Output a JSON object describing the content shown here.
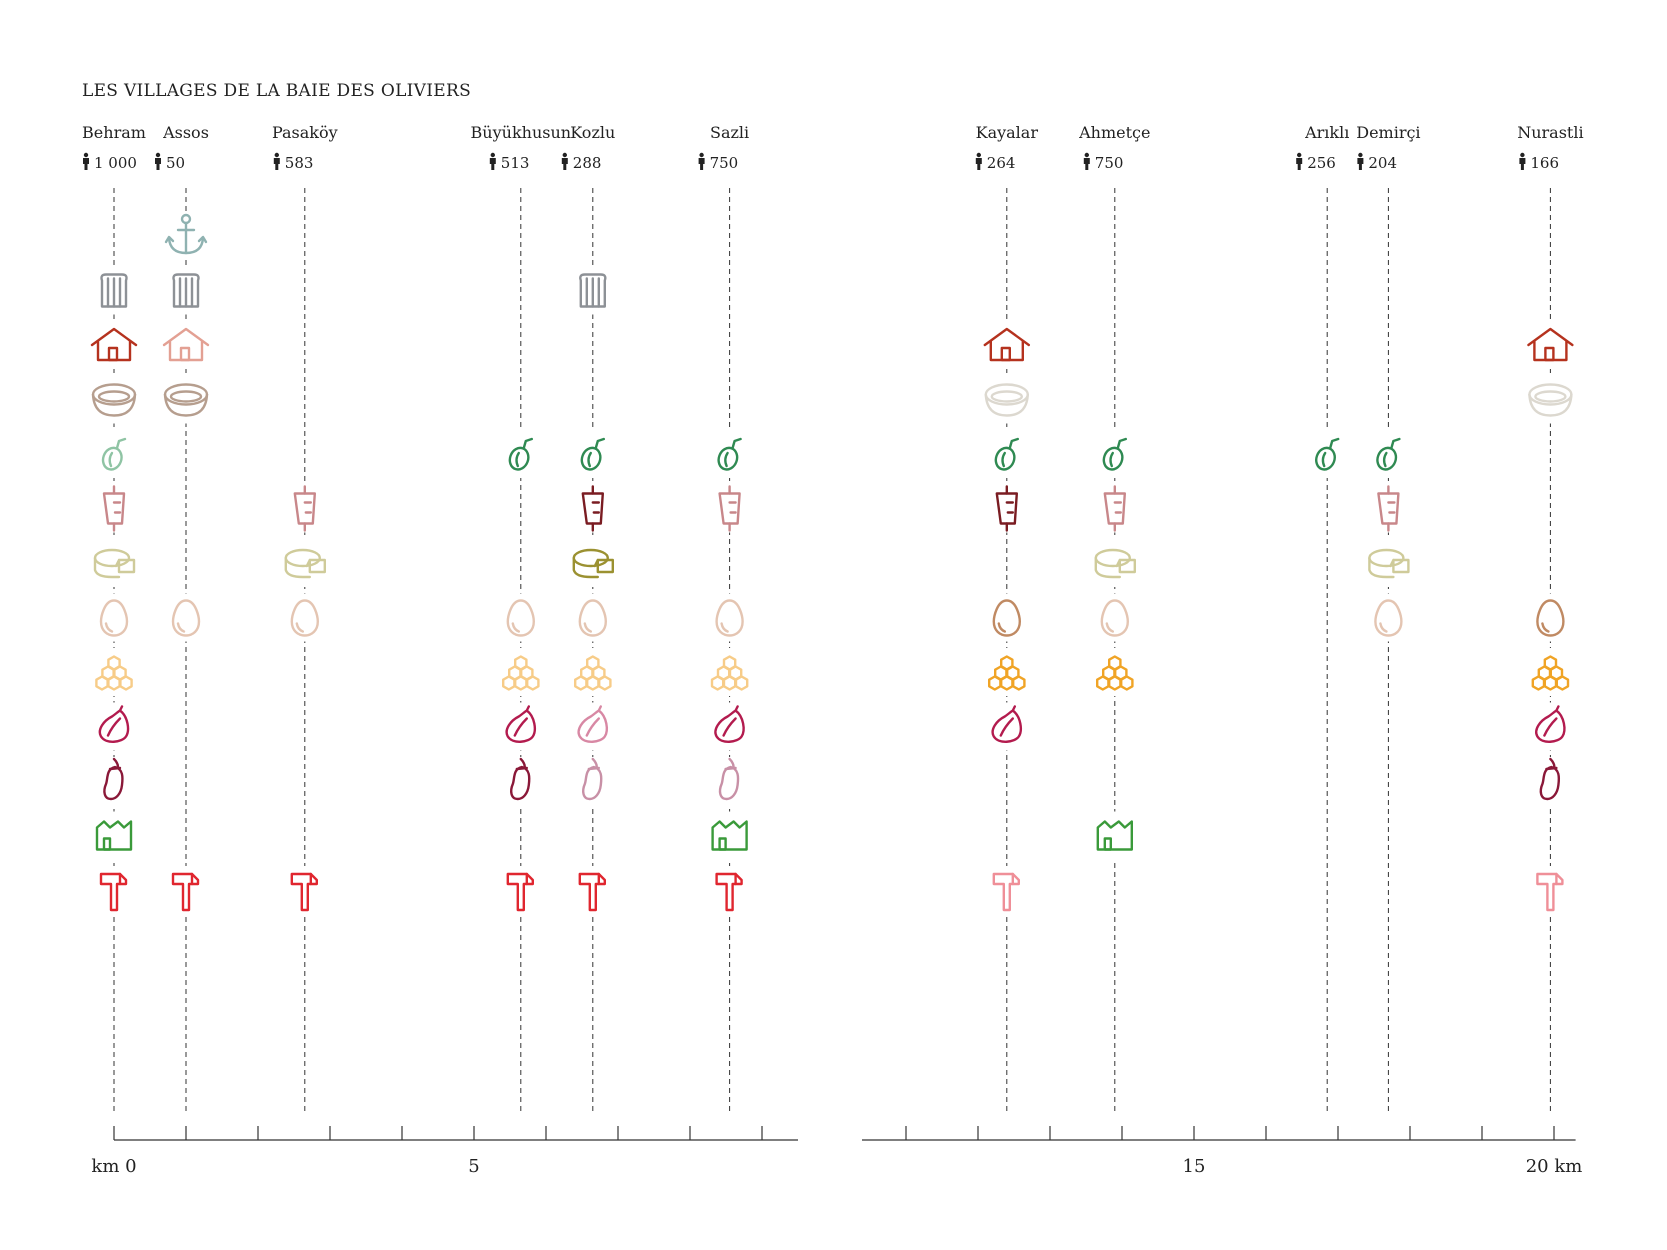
{
  "title": "LES VILLAGES DE LA BAIE DES OLIVIERS",
  "axis": {
    "segments": [
      [
        0,
        9.5
      ],
      [
        10.5,
        20.3
      ]
    ],
    "minor_tick_step_km": 1,
    "labels": [
      {
        "km": 0,
        "text": "km 0"
      },
      {
        "km": 5,
        "text": "5"
      },
      {
        "km": 15,
        "text": "15"
      },
      {
        "km": 20,
        "text": "20 km"
      }
    ]
  },
  "rows": [
    "anchor-icon",
    "bakery-icon",
    "house-icon",
    "bowl-icon",
    "olive-icon",
    "kebab-icon",
    "cheese-icon",
    "egg-icon",
    "honeycomb-icon",
    "fig-icon",
    "eggplant-icon",
    "factory-icon",
    "hammer-icon"
  ],
  "colors": {
    "anchor-icon": "#8fb2b1",
    "bakery-icon": "#8d9196",
    "house-dark": "#b5321e",
    "house-light": "#e3a093",
    "bowl-dark": "#b69e8e",
    "bowl-light": "#dcd8cf",
    "olive-dark": "#2f8a52",
    "olive-light": "#8fc4a4",
    "kebab-dark": "#7a1c22",
    "kebab-light": "#c8878a",
    "cheese-dark": "#9b9131",
    "cheese-light": "#cfcb9a",
    "egg-dark": "#c08a63",
    "egg-light": "#e4c5b2",
    "honeycomb-dark": "#f0a426",
    "honeycomb-light": "#f7cc88",
    "fig-dark": "#b31b4e",
    "fig-light": "#d888a4",
    "eggplant-dark": "#8a1838",
    "eggplant-light": "#c890a6",
    "factory-icon": "#3a9a3a",
    "hammer-dark": "#e0262f",
    "hammer-light": "#ef8f98"
  },
  "villages": [
    {
      "name": "Behram",
      "population": "1 000",
      "km": 0,
      "icons": [
        {
          "type": "bakery-icon"
        },
        {
          "type": "house-icon",
          "shade": "dark"
        },
        {
          "type": "bowl-icon",
          "shade": "dark"
        },
        {
          "type": "olive-icon",
          "shade": "light"
        },
        {
          "type": "kebab-icon",
          "shade": "light"
        },
        {
          "type": "cheese-icon",
          "shade": "light"
        },
        {
          "type": "egg-icon",
          "shade": "light"
        },
        {
          "type": "honeycomb-icon",
          "shade": "light"
        },
        {
          "type": "fig-icon",
          "shade": "dark"
        },
        {
          "type": "eggplant-icon",
          "shade": "dark"
        },
        {
          "type": "factory-icon"
        },
        {
          "type": "hammer-icon",
          "shade": "dark"
        }
      ]
    },
    {
      "name": "Assos",
      "population": "50",
      "km": 1,
      "icons": [
        {
          "type": "anchor-icon"
        },
        {
          "type": "bakery-icon"
        },
        {
          "type": "house-icon",
          "shade": "light"
        },
        {
          "type": "bowl-icon",
          "shade": "dark"
        },
        {
          "type": "egg-icon",
          "shade": "light"
        },
        {
          "type": "hammer-icon",
          "shade": "dark"
        }
      ]
    },
    {
      "name": "Pasaköy",
      "population": "583",
      "km": 2.65,
      "icons": [
        {
          "type": "kebab-icon",
          "shade": "light"
        },
        {
          "type": "cheese-icon",
          "shade": "light"
        },
        {
          "type": "egg-icon",
          "shade": "light"
        },
        {
          "type": "hammer-icon",
          "shade": "dark"
        }
      ]
    },
    {
      "name": "Büyükhusun",
      "population": "513",
      "km": 5.65,
      "icons": [
        {
          "type": "olive-icon",
          "shade": "dark"
        },
        {
          "type": "egg-icon",
          "shade": "light"
        },
        {
          "type": "honeycomb-icon",
          "shade": "light"
        },
        {
          "type": "fig-icon",
          "shade": "dark"
        },
        {
          "type": "eggplant-icon",
          "shade": "dark"
        },
        {
          "type": "hammer-icon",
          "shade": "dark"
        }
      ]
    },
    {
      "name": "Kozlu",
      "population": "288",
      "km": 6.65,
      "icons": [
        {
          "type": "bakery-icon"
        },
        {
          "type": "olive-icon",
          "shade": "dark"
        },
        {
          "type": "kebab-icon",
          "shade": "dark"
        },
        {
          "type": "cheese-icon",
          "shade": "dark"
        },
        {
          "type": "egg-icon",
          "shade": "light"
        },
        {
          "type": "honeycomb-icon",
          "shade": "light"
        },
        {
          "type": "fig-icon",
          "shade": "light"
        },
        {
          "type": "eggplant-icon",
          "shade": "light"
        },
        {
          "type": "hammer-icon",
          "shade": "dark"
        }
      ]
    },
    {
      "name": "Sazli",
      "population": "750",
      "km": 8.55,
      "icons": [
        {
          "type": "olive-icon",
          "shade": "dark"
        },
        {
          "type": "kebab-icon",
          "shade": "light"
        },
        {
          "type": "egg-icon",
          "shade": "light"
        },
        {
          "type": "honeycomb-icon",
          "shade": "light"
        },
        {
          "type": "fig-icon",
          "shade": "dark"
        },
        {
          "type": "eggplant-icon",
          "shade": "light"
        },
        {
          "type": "factory-icon"
        },
        {
          "type": "hammer-icon",
          "shade": "dark"
        }
      ]
    },
    {
      "name": "Kayalar",
      "population": "264",
      "km": 12.4,
      "icons": [
        {
          "type": "house-icon",
          "shade": "dark"
        },
        {
          "type": "bowl-icon",
          "shade": "light"
        },
        {
          "type": "olive-icon",
          "shade": "dark"
        },
        {
          "type": "kebab-icon",
          "shade": "dark"
        },
        {
          "type": "egg-icon",
          "shade": "dark"
        },
        {
          "type": "honeycomb-icon",
          "shade": "dark"
        },
        {
          "type": "fig-icon",
          "shade": "dark"
        },
        {
          "type": "hammer-icon",
          "shade": "light"
        }
      ]
    },
    {
      "name": "Ahmetçe",
      "population": "750",
      "km": 13.9,
      "icons": [
        {
          "type": "olive-icon",
          "shade": "dark"
        },
        {
          "type": "kebab-icon",
          "shade": "light"
        },
        {
          "type": "cheese-icon",
          "shade": "light"
        },
        {
          "type": "egg-icon",
          "shade": "light"
        },
        {
          "type": "honeycomb-icon",
          "shade": "dark"
        },
        {
          "type": "factory-icon"
        }
      ]
    },
    {
      "name": "Arıklı",
      "population": "256",
      "km": 16.85,
      "icons": [
        {
          "type": "olive-icon",
          "shade": "dark"
        }
      ]
    },
    {
      "name": "Demirçi",
      "population": "204",
      "km": 17.7,
      "icons": [
        {
          "type": "olive-icon",
          "shade": "dark"
        },
        {
          "type": "kebab-icon",
          "shade": "light"
        },
        {
          "type": "cheese-icon",
          "shade": "light"
        },
        {
          "type": "egg-icon",
          "shade": "light"
        }
      ]
    },
    {
      "name": "Nurastli",
      "population": "166",
      "km": 19.95,
      "icons": [
        {
          "type": "house-icon",
          "shade": "dark"
        },
        {
          "type": "bowl-icon",
          "shade": "light"
        },
        {
          "type": "egg-icon",
          "shade": "dark"
        },
        {
          "type": "honeycomb-icon",
          "shade": "dark"
        },
        {
          "type": "fig-icon",
          "shade": "dark"
        },
        {
          "type": "eggplant-icon",
          "shade": "dark"
        },
        {
          "type": "hammer-icon",
          "shade": "light"
        }
      ]
    }
  ]
}
